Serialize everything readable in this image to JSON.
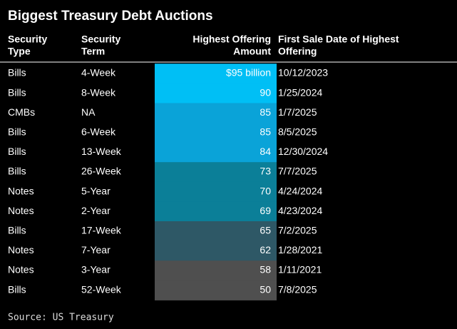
{
  "title": "Biggest Treasury Debt Auctions",
  "table": {
    "headers": [
      [
        "Security",
        "Type"
      ],
      [
        "Security",
        "Term"
      ],
      [
        "Highest Offering",
        "Amount"
      ],
      [
        "First Sale Date of Highest",
        "Offering"
      ]
    ],
    "rows": [
      [
        "Bills",
        "4-Week",
        "$95 billion",
        "10/12/2023"
      ],
      [
        "Bills",
        "8-Week",
        "90",
        "1/25/2024"
      ],
      [
        "CMBs",
        "NA",
        "85",
        "1/7/2025"
      ],
      [
        "Bills",
        "6-Week",
        "85",
        "8/5/2025"
      ],
      [
        "Bills",
        "13-Week",
        "84",
        "12/30/2024"
      ],
      [
        "Bills",
        "26-Week",
        "73",
        "7/7/2025"
      ],
      [
        "Notes",
        "5-Year",
        "70",
        "4/24/2024"
      ],
      [
        "Notes",
        "2-Year",
        "69",
        "4/23/2024"
      ],
      [
        "Bills",
        "17-Week",
        "65",
        "7/2/2025"
      ],
      [
        "Notes",
        "7-Year",
        "62",
        "1/28/2021"
      ],
      [
        "Notes",
        "3-Year",
        "58",
        "1/11/2021"
      ],
      [
        "Bills",
        "52-Week",
        "50",
        "7/8/2025"
      ]
    ],
    "amount_colors": [
      "#00bff5",
      "#00bff5",
      "#0aa3d8",
      "#0aa3d8",
      "#0aa3d8",
      "#0b7f98",
      "#0b7f98",
      "#0b7f98",
      "#2e5866",
      "#2e5866",
      "#4f4f4f",
      "#4f4f4f"
    ]
  },
  "source": "Source: US Treasury"
}
